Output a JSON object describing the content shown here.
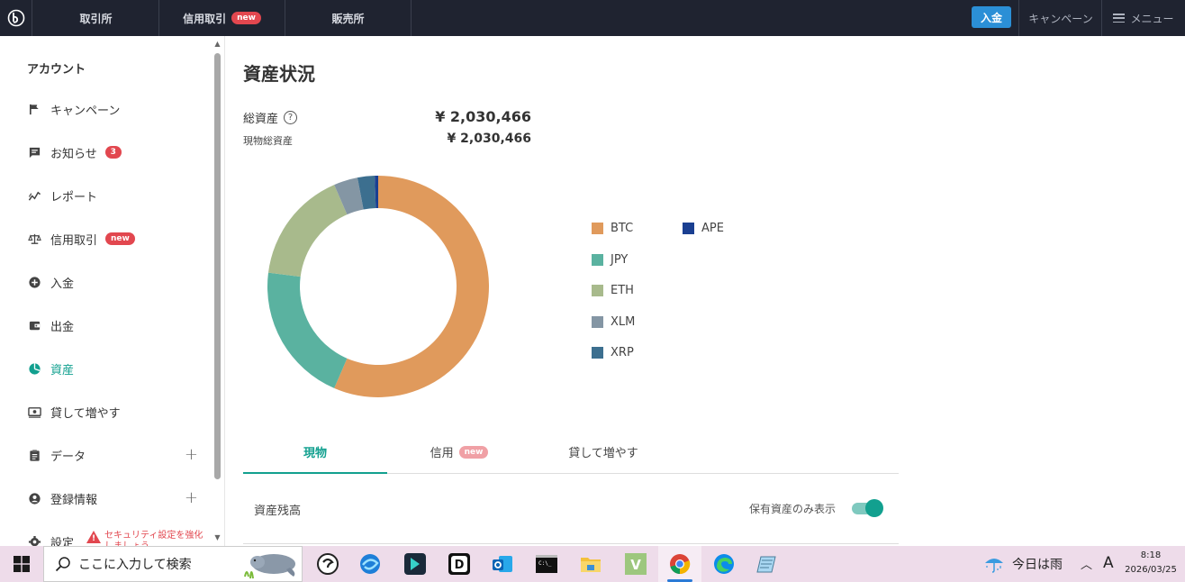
{
  "topnav": {
    "tabs": [
      {
        "label": "取引所"
      },
      {
        "label": "信用取引",
        "badge": "new"
      },
      {
        "label": "販売所"
      }
    ],
    "deposit_label": "入金",
    "campaign_label": "キャンペーン",
    "menu_label": "メニュー"
  },
  "sidebar": {
    "title": "アカウント",
    "items": [
      {
        "label": "キャンペーン",
        "icon": "flag-icon"
      },
      {
        "label": "お知らせ",
        "icon": "message-icon",
        "count": "3"
      },
      {
        "label": "レポート",
        "icon": "report-chart-icon"
      },
      {
        "label": "信用取引",
        "icon": "scale-icon",
        "badge": "new"
      },
      {
        "label": "入金",
        "icon": "plus-circle-icon"
      },
      {
        "label": "出金",
        "icon": "wallet-icon"
      },
      {
        "label": "資産",
        "icon": "pie-chart-icon",
        "active": true
      },
      {
        "label": "貸して増やす",
        "icon": "lend-icon"
      },
      {
        "label": "データ",
        "icon": "clipboard-icon",
        "expandable": true
      },
      {
        "label": "登録情報",
        "icon": "user-circle-icon",
        "expandable": true
      },
      {
        "label": "設定",
        "icon": "gear-icon",
        "warning": "セキュリティ設定を強化しましょう"
      }
    ]
  },
  "main": {
    "title": "資産状況",
    "total_label": "総資産",
    "total_value": "¥ 2,030,466",
    "spot_label": "現物総資産",
    "spot_value": "¥ 2,030,466",
    "tabs": [
      {
        "label": "現物",
        "active": true
      },
      {
        "label": "信用",
        "badge": "new"
      },
      {
        "label": "貸して増やす"
      }
    ],
    "balance_label": "資産残高",
    "holdings_only_label": "保有資産のみ表示",
    "holdings_only_on": true
  },
  "chart_data": {
    "type": "pie",
    "categories": [
      "BTC",
      "JPY",
      "ETH",
      "XLM",
      "XRP",
      "APE"
    ],
    "values": [
      56.5,
      20.5,
      16.5,
      3.5,
      2.5,
      0.5
    ],
    "colors": [
      "#e09a5c",
      "#5ab2a0",
      "#a8ba8c",
      "#8496a4",
      "#3c6f8f",
      "#1a3f91"
    ],
    "legend": "right"
  },
  "taskbar": {
    "search_placeholder": "ここに入力して検索",
    "weather": "今日は雨",
    "ime": "A",
    "time": "8:18",
    "date": "2026/03/25"
  }
}
